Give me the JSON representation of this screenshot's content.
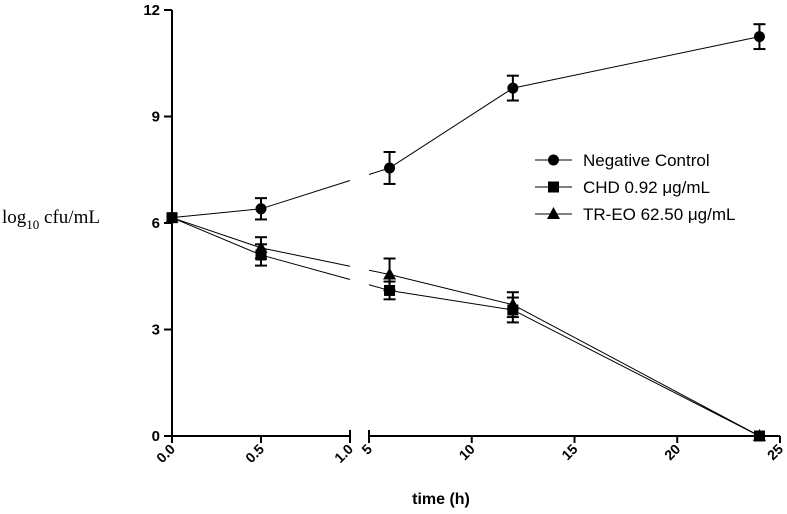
{
  "chart_data": {
    "type": "line",
    "title": "",
    "xlabel": "time (h)",
    "ylabel": "log10 cfu/mL",
    "ylabel_parts": {
      "pre": "log",
      "sub": "10",
      "post": " cfu/mL"
    },
    "x_axis_break": true,
    "x_segments": [
      {
        "range": [
          0.0,
          1.0
        ],
        "ticks": [
          0.0,
          0.5,
          1.0
        ],
        "tick_labels": [
          "0.0",
          "0.5",
          "1.0"
        ]
      },
      {
        "range": [
          5,
          25
        ],
        "ticks": [
          5,
          10,
          15,
          20,
          25
        ],
        "tick_labels": [
          "5",
          "10",
          "15",
          "20",
          "25"
        ]
      }
    ],
    "ylim": [
      0,
      12
    ],
    "yticks": [
      0,
      3,
      6,
      9,
      12
    ],
    "ytick_labels": [
      "0",
      "3",
      "6",
      "9",
      "12"
    ],
    "grid": false,
    "legend_position": "right",
    "series": [
      {
        "name": "Negative Control",
        "marker": "circle",
        "x": [
          0,
          0.5,
          6,
          12,
          24
        ],
        "y": [
          6.15,
          6.4,
          7.55,
          9.8,
          11.25
        ],
        "error": [
          0,
          0.3,
          0.45,
          0.35,
          0.35
        ]
      },
      {
        "name": "CHD  0.92 μg/mL",
        "marker": "square",
        "x": [
          0,
          0.5,
          6,
          12,
          24
        ],
        "y": [
          6.15,
          5.1,
          4.1,
          3.55,
          0
        ],
        "error": [
          0,
          0.3,
          0.25,
          0.35,
          0
        ]
      },
      {
        "name": "TR-EO 62.50 μg/mL",
        "marker": "triangle",
        "x": [
          0,
          0.5,
          6,
          12,
          24
        ],
        "y": [
          6.15,
          5.3,
          4.55,
          3.7,
          0
        ],
        "error": [
          0,
          0.3,
          0.45,
          0.35,
          0
        ]
      }
    ]
  }
}
